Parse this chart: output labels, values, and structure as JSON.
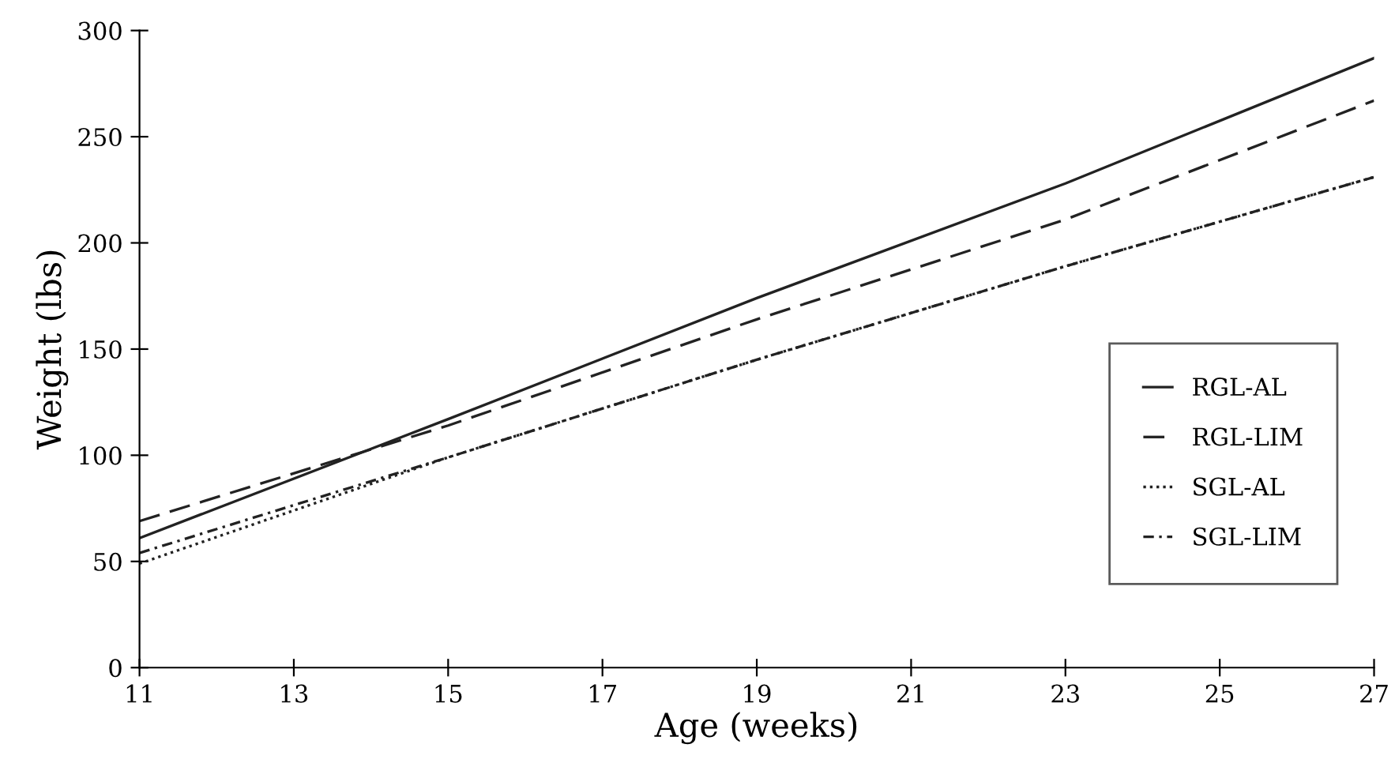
{
  "chart_data": {
    "type": "line",
    "xlabel": "Age (weeks)",
    "ylabel": "Weight (lbs)",
    "x": [
      11,
      15,
      19,
      23,
      27
    ],
    "series": [
      {
        "name": "RGL-AL",
        "color": "#222222",
        "line_style": "solid",
        "values": [
          61,
          117,
          174,
          228,
          287
        ]
      },
      {
        "name": "RGL-LIM",
        "color": "#222222",
        "line_style": "dashed",
        "values": [
          69,
          114,
          164,
          211,
          267
        ]
      },
      {
        "name": "SGL-AL",
        "color": "#222222",
        "line_style": "dotted",
        "values": [
          49,
          99,
          145,
          189,
          231
        ]
      },
      {
        "name": "SGL-LIM",
        "color": "#222222",
        "line_style": "dashdot",
        "values": [
          54,
          99,
          145,
          189,
          231
        ]
      }
    ],
    "xlim": [
      11,
      27
    ],
    "xticks": [
      11,
      13,
      15,
      17,
      19,
      21,
      23,
      25,
      27
    ],
    "ylim": [
      0,
      300
    ],
    "yticks": [
      0,
      50,
      100,
      150,
      200,
      250,
      300
    ],
    "grid": false,
    "legend": "right",
    "marker": "none"
  }
}
